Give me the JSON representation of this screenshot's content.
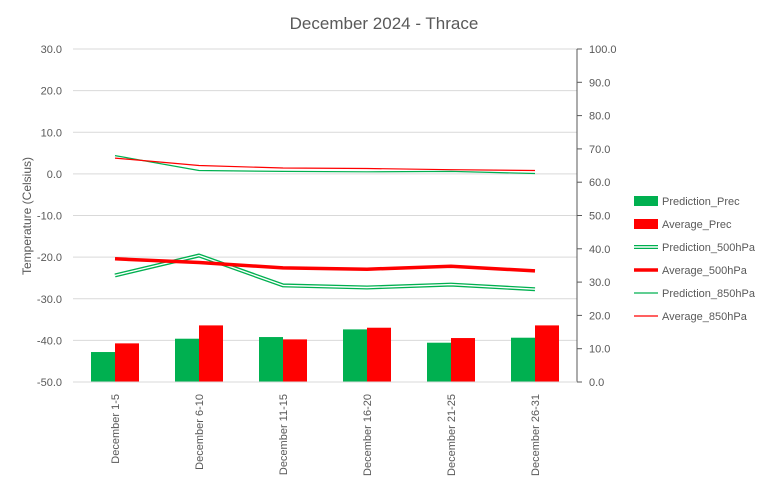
{
  "chart_data": {
    "type": "bar",
    "title": "December 2024 - Thrace",
    "ylabel": "Temperature (Celsius)",
    "ylabel_right": "",
    "xlabel": "",
    "categories": [
      "December 1-5",
      "December 6-10",
      "December 11-15",
      "December 16-20",
      "December 21-25",
      "December 26-31"
    ],
    "ylim": [
      -50,
      30
    ],
    "ylim_right": [
      0,
      100
    ],
    "y_ticks": [
      "30.0",
      "20.0",
      "10.0",
      "0.0",
      "-10.0",
      "-20.0",
      "-30.0",
      "-40.0",
      "-50.0"
    ],
    "y_right_ticks": [
      "100.0",
      "90.0",
      "80.0",
      "70.0",
      "60.0",
      "50.0",
      "40.0",
      "30.0",
      "20.0",
      "10.0",
      "0.0"
    ],
    "grid": true,
    "legend_position": "right",
    "series": [
      {
        "name": "Prediction_Prec",
        "kind": "bar",
        "axis": "right",
        "color": "#00b050",
        "values": [
          9.0,
          13.0,
          13.5,
          15.8,
          11.8,
          13.3
        ]
      },
      {
        "name": "Average_Prec",
        "kind": "bar",
        "axis": "right",
        "color": "#ff0000",
        "values": [
          11.6,
          17.0,
          12.8,
          16.3,
          13.2,
          17.0
        ]
      },
      {
        "name": "Prediction_500hPa",
        "kind": "line",
        "style": "double",
        "axis": "left",
        "color": "#00b050",
        "values": [
          -24.4,
          -19.6,
          -26.8,
          -27.3,
          -26.6,
          -27.7
        ]
      },
      {
        "name": "Average_500hPa",
        "kind": "line",
        "style": "thick",
        "axis": "left",
        "color": "#ff0000",
        "values": [
          -20.4,
          -21.3,
          -22.6,
          -22.9,
          -22.2,
          -23.3
        ]
      },
      {
        "name": "Prediction_850hPa",
        "kind": "line",
        "style": "thin",
        "axis": "left",
        "color": "#00b050",
        "values": [
          4.4,
          0.8,
          0.6,
          0.5,
          0.6,
          0.1
        ]
      },
      {
        "name": "Average_850hPa",
        "kind": "line",
        "style": "thin",
        "axis": "left",
        "color": "#ff0000",
        "values": [
          3.8,
          2.0,
          1.4,
          1.3,
          1.0,
          0.8
        ]
      }
    ]
  }
}
